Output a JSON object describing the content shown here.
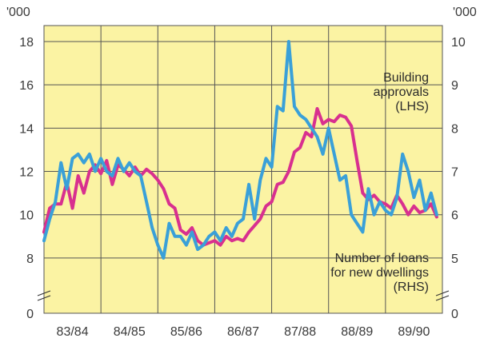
{
  "chart_data": {
    "type": "line",
    "left_unit": "'000",
    "right_unit": "'000",
    "categories": [
      "83/84",
      "84/85",
      "85/86",
      "86/87",
      "87/88",
      "88/89",
      "89/90"
    ],
    "left_axis": {
      "ticks": [
        8,
        10,
        12,
        14,
        16,
        18
      ],
      "broken_at_zero": true,
      "zero_label": "0",
      "ylim": [
        7,
        18
      ]
    },
    "right_axis": {
      "ticks": [
        5,
        6,
        7,
        8,
        9,
        10
      ],
      "broken_at_zero": true,
      "zero_label": "0",
      "ylim": [
        4.5,
        10
      ]
    },
    "grid": true,
    "annotations": [
      {
        "lines": [
          "Building",
          "approvals",
          "(LHS)"
        ]
      },
      {
        "lines": [
          "Number of loans",
          "for new dwellings",
          "(RHS)"
        ]
      }
    ],
    "series": [
      {
        "name": "Building approvals (LHS)",
        "axis": "left",
        "color": "#d8308f",
        "x": [
          83.0,
          83.1,
          83.2,
          83.3,
          83.4,
          83.5,
          83.6,
          83.7,
          83.8,
          83.9,
          84.0,
          84.1,
          84.2,
          84.3,
          84.4,
          84.5,
          84.6,
          84.7,
          84.8,
          84.9,
          85.0,
          85.1,
          85.2,
          85.3,
          85.4,
          85.5,
          85.6,
          85.7,
          85.8,
          85.9,
          86.0,
          86.1,
          86.2,
          86.3,
          86.4,
          86.5,
          86.6,
          86.7,
          86.8,
          86.9,
          87.0,
          87.1,
          87.2,
          87.3,
          87.4,
          87.5,
          87.6,
          87.7,
          87.8,
          87.9,
          88.0,
          88.1,
          88.2,
          88.3,
          88.4,
          88.5,
          88.6,
          88.7,
          88.8,
          88.9,
          89.0,
          89.1,
          89.2,
          89.3,
          89.4,
          89.5,
          89.6,
          89.7,
          89.8,
          89.9
        ],
        "values": [
          9.2,
          10.3,
          10.5,
          10.5,
          11.5,
          10.3,
          11.8,
          11.0,
          12.0,
          12.3,
          11.9,
          12.5,
          11.4,
          12.3,
          12.1,
          11.8,
          12.2,
          11.8,
          12.1,
          11.9,
          11.6,
          11.2,
          10.5,
          10.3,
          9.3,
          9.1,
          9.4,
          8.8,
          8.6,
          8.7,
          8.8,
          8.6,
          9.0,
          8.8,
          8.9,
          8.8,
          9.2,
          9.5,
          9.8,
          10.4,
          10.6,
          11.4,
          11.5,
          12.0,
          12.9,
          13.1,
          13.8,
          13.6,
          14.9,
          14.2,
          14.4,
          14.3,
          14.6,
          14.5,
          14.1,
          12.5,
          11.0,
          10.7,
          10.9,
          10.6,
          10.5,
          10.3,
          10.9,
          10.5,
          10.0,
          10.4,
          10.1,
          10.2,
          10.5,
          9.9
        ]
      },
      {
        "name": "Number of loans for new dwellings (RHS)",
        "axis": "right",
        "color": "#3aa0d8",
        "x": [
          83.0,
          83.1,
          83.2,
          83.3,
          83.4,
          83.5,
          83.6,
          83.7,
          83.8,
          83.9,
          84.0,
          84.1,
          84.2,
          84.3,
          84.4,
          84.5,
          84.6,
          84.7,
          84.8,
          84.9,
          85.0,
          85.1,
          85.2,
          85.3,
          85.4,
          85.5,
          85.6,
          85.7,
          85.8,
          85.9,
          86.0,
          86.1,
          86.2,
          86.3,
          86.4,
          86.5,
          86.6,
          86.7,
          86.8,
          86.9,
          87.0,
          87.1,
          87.2,
          87.3,
          87.4,
          87.5,
          87.6,
          87.7,
          87.8,
          87.9,
          88.0,
          88.1,
          88.2,
          88.3,
          88.4,
          88.5,
          88.6,
          88.7,
          88.8,
          88.9,
          89.0,
          89.1,
          89.2,
          89.3,
          89.4,
          89.5,
          89.6,
          89.7,
          89.8,
          89.9
        ],
        "values": [
          5.4,
          5.9,
          6.3,
          7.2,
          6.6,
          7.3,
          7.4,
          7.2,
          7.4,
          7.0,
          7.3,
          7.0,
          6.9,
          7.3,
          7.0,
          7.2,
          7.0,
          6.9,
          6.3,
          5.7,
          5.3,
          5.0,
          5.8,
          5.5,
          5.5,
          5.3,
          5.6,
          5.2,
          5.3,
          5.5,
          5.6,
          5.4,
          5.7,
          5.5,
          5.8,
          5.9,
          6.7,
          5.9,
          6.8,
          7.3,
          7.1,
          8.5,
          8.4,
          10.0,
          8.5,
          8.3,
          8.2,
          8.0,
          7.8,
          7.4,
          8.0,
          7.4,
          6.8,
          6.9,
          6.0,
          5.8,
          5.6,
          6.6,
          6.0,
          6.3,
          6.1,
          6.0,
          6.4,
          7.4,
          7.0,
          6.4,
          6.8,
          6.1,
          6.5,
          6.0
        ]
      }
    ]
  }
}
